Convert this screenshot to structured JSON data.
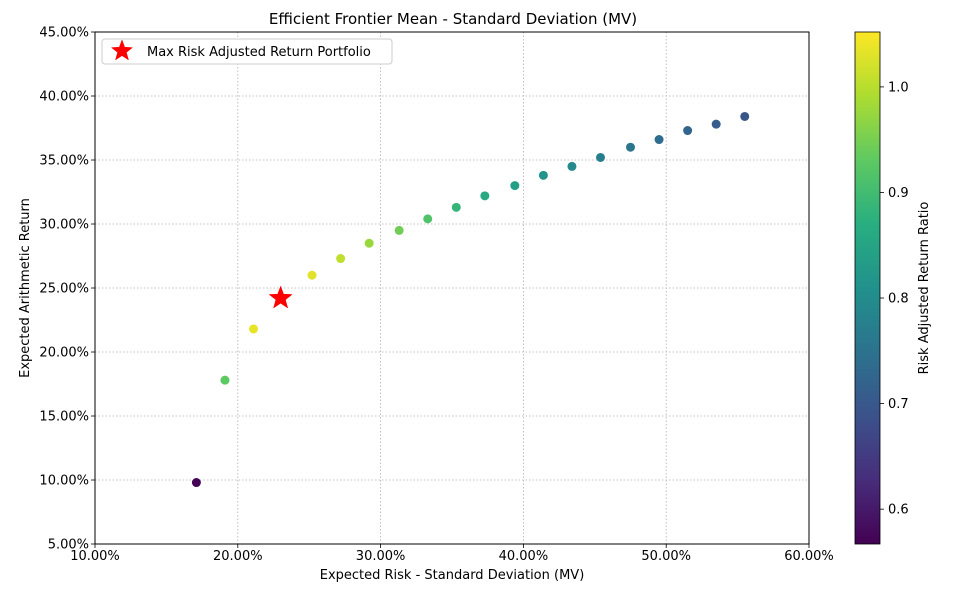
{
  "chart_data": {
    "type": "scatter",
    "title": "Efficient Frontier Mean - Standard Deviation (MV)",
    "xlabel": "Expected Risk - Standard Deviation (MV)",
    "ylabel": "Expected Arithmetic Return",
    "xlim": [
      0.1,
      0.6
    ],
    "ylim": [
      0.05,
      0.45
    ],
    "x_ticks": [
      0.1,
      0.2,
      0.3,
      0.4,
      0.5,
      0.6
    ],
    "x_tick_labels": [
      "10.00%",
      "20.00%",
      "30.00%",
      "40.00%",
      "50.00%",
      "60.00%"
    ],
    "y_ticks": [
      0.05,
      0.1,
      0.15,
      0.2,
      0.25,
      0.3,
      0.35,
      0.4,
      0.45
    ],
    "y_tick_labels": [
      "5.00%",
      "10.00%",
      "15.00%",
      "20.00%",
      "25.00%",
      "30.00%",
      "35.00%",
      "40.00%",
      "45.00%"
    ],
    "grid": true,
    "colormap": "viridis",
    "points": [
      {
        "x": 0.171,
        "y": 0.098,
        "ratio": 0.57
      },
      {
        "x": 0.191,
        "y": 0.178,
        "ratio": 0.93
      },
      {
        "x": 0.211,
        "y": 0.218,
        "ratio": 1.035
      },
      {
        "x": 0.231,
        "y": 0.242,
        "ratio": 1.05
      },
      {
        "x": 0.252,
        "y": 0.26,
        "ratio": 1.03
      },
      {
        "x": 0.272,
        "y": 0.273,
        "ratio": 1.005
      },
      {
        "x": 0.292,
        "y": 0.285,
        "ratio": 0.975
      },
      {
        "x": 0.313,
        "y": 0.295,
        "ratio": 0.945
      },
      {
        "x": 0.333,
        "y": 0.304,
        "ratio": 0.915
      },
      {
        "x": 0.353,
        "y": 0.313,
        "ratio": 0.885
      },
      {
        "x": 0.373,
        "y": 0.322,
        "ratio": 0.86
      },
      {
        "x": 0.394,
        "y": 0.33,
        "ratio": 0.838
      },
      {
        "x": 0.414,
        "y": 0.338,
        "ratio": 0.815
      },
      {
        "x": 0.434,
        "y": 0.345,
        "ratio": 0.795
      },
      {
        "x": 0.454,
        "y": 0.352,
        "ratio": 0.775
      },
      {
        "x": 0.475,
        "y": 0.36,
        "ratio": 0.757
      },
      {
        "x": 0.495,
        "y": 0.366,
        "ratio": 0.74
      },
      {
        "x": 0.515,
        "y": 0.373,
        "ratio": 0.725
      },
      {
        "x": 0.535,
        "y": 0.378,
        "ratio": 0.71
      },
      {
        "x": 0.555,
        "y": 0.384,
        "ratio": 0.695
      }
    ],
    "highlight": {
      "label": "Max Risk Adjusted Return Portfolio",
      "x": 0.23,
      "y": 0.242,
      "marker": "star",
      "color": "#ff0000"
    },
    "legend": {
      "position": "top-left",
      "entries": [
        "Max Risk Adjusted Return Portfolio"
      ]
    },
    "colorbar": {
      "label": "Risk Adjusted Return Ratio",
      "range": [
        0.567,
        1.052
      ],
      "ticks": [
        0.6,
        0.7,
        0.8,
        0.9,
        1.0
      ],
      "tick_labels": [
        "0.6",
        "0.7",
        "0.8",
        "0.9",
        "1.0"
      ]
    }
  }
}
